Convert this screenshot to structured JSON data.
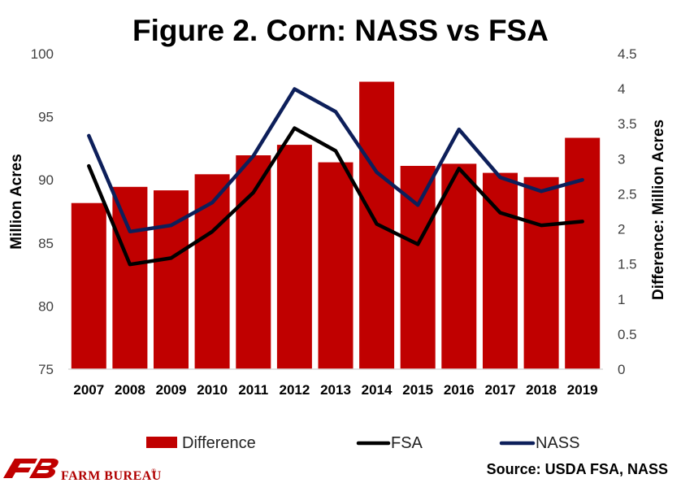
{
  "chart_data": {
    "type": "bar",
    "title": "Figure 2. Corn: NASS vs FSA",
    "ylabel": "Million Acres",
    "y2label": "Difference: Million Acres",
    "xlabel": "",
    "categories": [
      "2007",
      "2008",
      "2009",
      "2010",
      "2011",
      "2012",
      "2013",
      "2014",
      "2015",
      "2016",
      "2017",
      "2018",
      "2019"
    ],
    "ylim": [
      75,
      100
    ],
    "y2lim": [
      0,
      4.5
    ],
    "yticks": [
      "75",
      "80",
      "85",
      "90",
      "95",
      "100"
    ],
    "y2ticks": [
      "0",
      "0.5",
      "1",
      "1.5",
      "2",
      "2.5",
      "3",
      "3.5",
      "4",
      "4.5"
    ],
    "grid": false,
    "legend_position": "bottom",
    "series": [
      {
        "name": "Difference",
        "type": "bar",
        "axis": "right",
        "color": "#c00000",
        "values": [
          2.37,
          2.6,
          2.55,
          2.78,
          3.05,
          3.2,
          2.95,
          4.1,
          2.9,
          2.93,
          2.8,
          2.74,
          3.3
        ]
      },
      {
        "name": "FSA",
        "type": "line",
        "axis": "left",
        "color": "#000000",
        "values": [
          91.1,
          83.3,
          83.8,
          85.9,
          89.0,
          94.1,
          92.3,
          86.5,
          84.9,
          90.9,
          87.4,
          86.4,
          86.7
        ]
      },
      {
        "name": "NASS",
        "type": "line",
        "axis": "left",
        "color": "#0d1f5a",
        "values": [
          93.5,
          85.9,
          86.4,
          88.2,
          91.9,
          97.2,
          95.4,
          90.6,
          88.0,
          94.0,
          90.2,
          89.1,
          90.0
        ]
      }
    ]
  },
  "source_text": "Source: USDA FSA, NASS",
  "logo": {
    "text": "FARM BUREAU",
    "mark": "FB",
    "registered": "®"
  }
}
